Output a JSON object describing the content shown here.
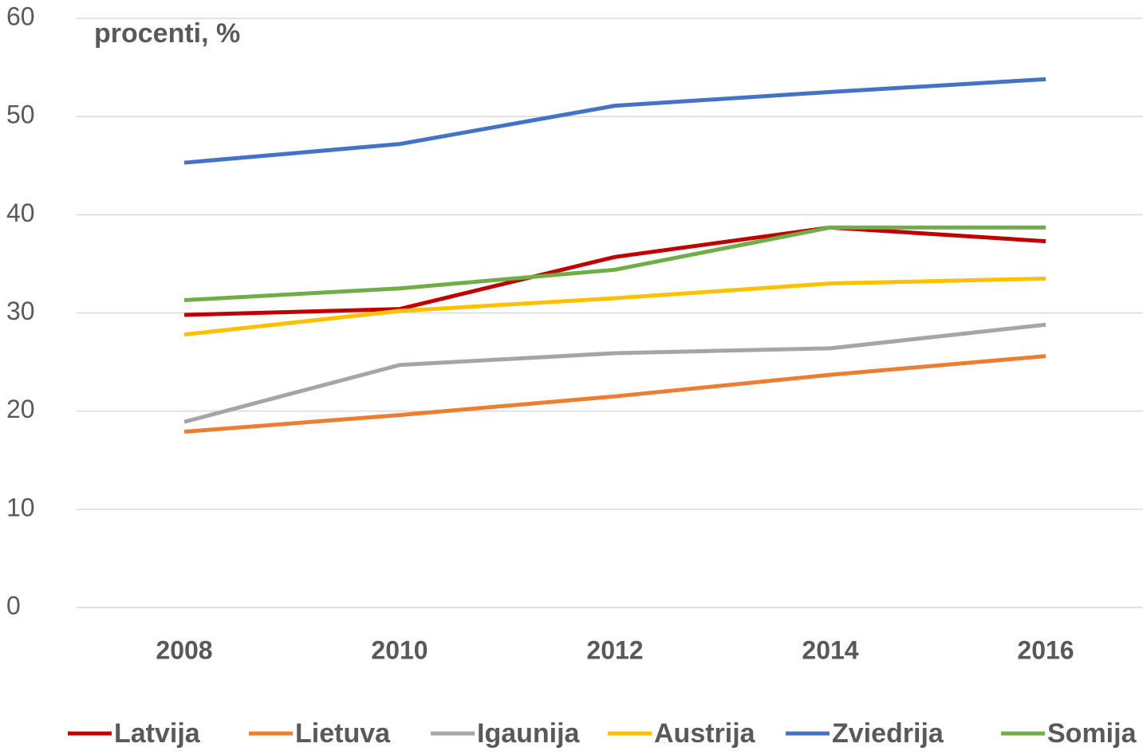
{
  "chart_data": {
    "type": "line",
    "y_label": "procenti, %",
    "categories": [
      "2008",
      "2010",
      "2012",
      "2014",
      "2016"
    ],
    "series": [
      {
        "name": "Latvija",
        "color": "#c00000",
        "values": [
          29.8,
          30.4,
          35.7,
          38.7,
          37.3
        ]
      },
      {
        "name": "Lietuva",
        "color": "#ed7d31",
        "values": [
          17.9,
          19.6,
          21.5,
          23.7,
          25.6
        ]
      },
      {
        "name": "Igaunija",
        "color": "#a5a5a5",
        "values": [
          18.9,
          24.7,
          25.9,
          26.4,
          28.8
        ]
      },
      {
        "name": "Austrija",
        "color": "#ffc000",
        "values": [
          27.8,
          30.2,
          31.5,
          33.0,
          33.5
        ]
      },
      {
        "name": "Zviedrija",
        "color": "#4472c4",
        "values": [
          45.3,
          47.2,
          51.1,
          52.5,
          53.8
        ]
      },
      {
        "name": "Somija",
        "color": "#70ad47",
        "values": [
          31.3,
          32.5,
          34.4,
          38.7,
          38.7
        ]
      }
    ],
    "ylim": [
      0,
      60
    ],
    "yticks": [
      0,
      10,
      20,
      30,
      40,
      50,
      60
    ],
    "grid": true,
    "legend": "bottom"
  }
}
